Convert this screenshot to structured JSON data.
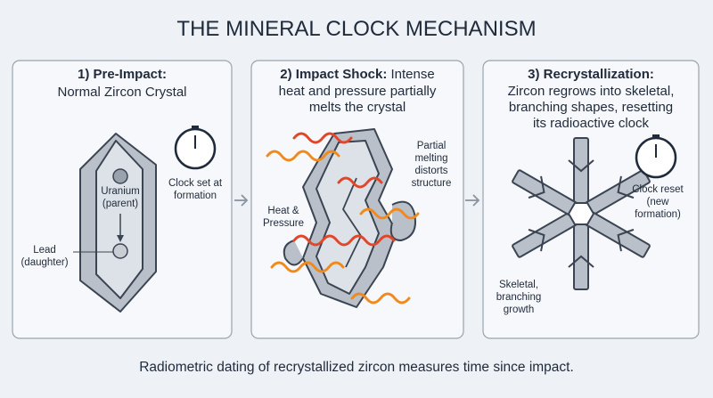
{
  "title": "THE MINERAL CLOCK MECHANISM",
  "panels": [
    {
      "heading": "1) Pre-Impact:",
      "lines": [
        "Normal Zircon Crystal"
      ],
      "labels": [
        {
          "lines": [
            "Uranium",
            "(parent)"
          ]
        },
        {
          "lines": [
            "Lead",
            "(daughter)"
          ]
        },
        {
          "lines": [
            "Clock set at",
            "formation"
          ]
        }
      ]
    },
    {
      "heading": "2) Impact Shock:",
      "lines": [
        "Intense",
        "heat and pressure partially",
        "melts the crystal"
      ],
      "labels": [
        {
          "lines": [
            "Partial",
            "melting",
            "distorts",
            "structure"
          ]
        },
        {
          "lines": [
            "Heat &",
            "Pressure"
          ]
        }
      ]
    },
    {
      "heading": "3) Recrystallization:",
      "lines": [
        "Zircon regrows into skeletal,",
        "branching shapes, resetting",
        "its radioactive clock"
      ],
      "labels": [
        {
          "lines": [
            "Clock reset",
            "(new",
            "formation)"
          ]
        },
        {
          "lines": [
            "Skeletal,",
            "branching",
            "growth"
          ]
        }
      ]
    }
  ],
  "footer": "Radiometric dating of recrystallized zircon measures time since impact."
}
